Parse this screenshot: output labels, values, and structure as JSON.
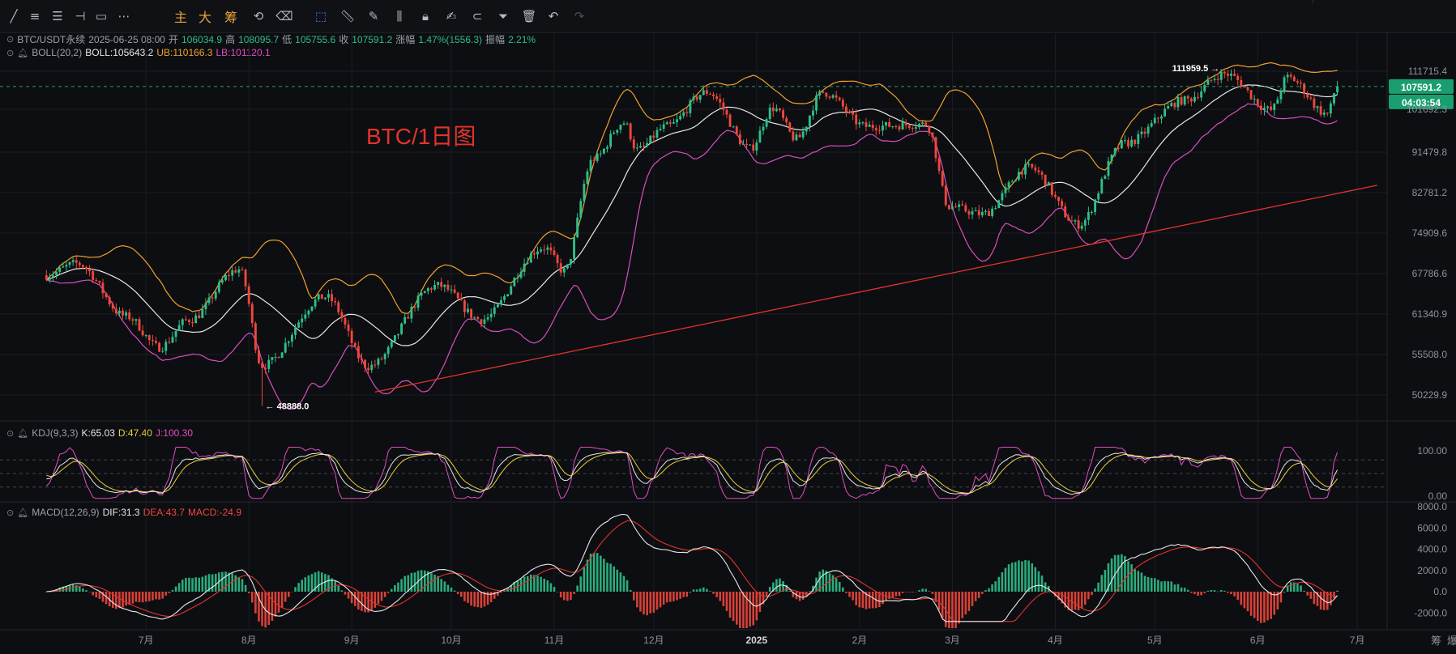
{
  "toolbar": {
    "cn_main": "主",
    "cn_big": "大",
    "cn_chip": "筹"
  },
  "header": {
    "symbol": "BTC/USDT永续",
    "datetime": "2025-06-25 08:00",
    "open_label": "开",
    "open": "106034.9",
    "high_label": "高",
    "high": "108095.7",
    "low_label": "低",
    "low": "105755.6",
    "close_label": "收",
    "close": "107591.2",
    "change_label": "涨幅",
    "change": "1.47%(1556.3)",
    "amp_label": "振幅",
    "amp": "2.21%"
  },
  "boll_legend": {
    "name": "BOLL(20,2)",
    "mid": "BOLL:105643.2",
    "ub": "UB:110166.3",
    "lb": "LB:101120.1"
  },
  "kdj_legend": {
    "name": "KDJ(9,3,3)",
    "k": "K:65.03",
    "d": "D:47.40",
    "j": "J:100.30"
  },
  "macd_legend": {
    "name": "MACD(12,26,9)",
    "dif": "DIF:31.3",
    "dea": "DEA:43.7",
    "macd": "MACD:-24.9"
  },
  "colors": {
    "up": "#2fbf8a",
    "down": "#f0473d",
    "boll_mid": "#e8e8e8",
    "boll_ub": "#f0a12e",
    "boll_lb": "#d94fc0",
    "trend": "#e2342c",
    "k": "#e6e6e6",
    "d": "#e9d03b",
    "j": "#e24cc4"
  },
  "chart_data": [
    {
      "type": "candlestick",
      "title": "BTC/1日图",
      "x_labels": [
        "7月",
        "8月",
        "9月",
        "10月",
        "11月",
        "12月",
        "2025",
        "2月",
        "3月",
        "4月",
        "5月",
        "6月",
        "7月"
      ],
      "y_ticks": [
        "111715.4",
        "101692.3",
        "91479.8",
        "82781.2",
        "74909.6",
        "67786.6",
        "61340.9",
        "55508.0",
        "50229.9"
      ],
      "current_price": "107591.2",
      "countdown": "04:03:54",
      "annotations": {
        "high": "111959.5",
        "low": "48888.0"
      },
      "series_names": [
        "BOLL",
        "UB",
        "LB"
      ],
      "anchors": [
        {
          "date": "2024-06-01",
          "price": 67500
        },
        {
          "date": "2024-06-10",
          "price": 69500
        },
        {
          "date": "2024-06-25",
          "price": 61000
        },
        {
          "date": "2024-07-05",
          "price": 56500
        },
        {
          "date": "2024-07-14",
          "price": 60500
        },
        {
          "date": "2024-07-29",
          "price": 68500
        },
        {
          "date": "2024-08-05",
          "price": 54000
        },
        {
          "date": "2024-08-24",
          "price": 64000
        },
        {
          "date": "2024-09-06",
          "price": 53900
        },
        {
          "date": "2024-09-27",
          "price": 65800
        },
        {
          "date": "2024-10-10",
          "price": 60500
        },
        {
          "date": "2024-10-29",
          "price": 72300
        },
        {
          "date": "2024-11-04",
          "price": 68200
        },
        {
          "date": "2024-11-13",
          "price": 90000
        },
        {
          "date": "2024-11-22",
          "price": 98400
        },
        {
          "date": "2024-11-26",
          "price": 92000
        },
        {
          "date": "2024-12-05",
          "price": 97500
        },
        {
          "date": "2024-12-17",
          "price": 106100
        },
        {
          "date": "2024-12-30",
          "price": 92300
        },
        {
          "date": "2025-01-06",
          "price": 102000
        },
        {
          "date": "2025-01-13",
          "price": 94500
        },
        {
          "date": "2025-01-21",
          "price": 106000
        },
        {
          "date": "2025-02-03",
          "price": 97500
        },
        {
          "date": "2025-02-21",
          "price": 98000
        },
        {
          "date": "2025-02-28",
          "price": 80000
        },
        {
          "date": "2025-03-10",
          "price": 78500
        },
        {
          "date": "2025-03-24",
          "price": 88000
        },
        {
          "date": "2025-04-08",
          "price": 76500
        },
        {
          "date": "2025-04-22",
          "price": 93500
        },
        {
          "date": "2025-05-10",
          "price": 104000
        },
        {
          "date": "2025-05-22",
          "price": 111000
        },
        {
          "date": "2025-06-05",
          "price": 101500
        },
        {
          "date": "2025-06-10",
          "price": 110000
        },
        {
          "date": "2025-06-22",
          "price": 100500
        },
        {
          "date": "2025-06-25",
          "price": 107591
        }
      ],
      "trendline": [
        {
          "date": "2024-09-08",
          "price": 50600
        },
        {
          "date": "2025-07-07",
          "price": 84300
        }
      ]
    },
    {
      "type": "line",
      "title": "KDJ(9,3,3)",
      "series": [
        {
          "name": "K"
        },
        {
          "name": "D"
        },
        {
          "name": "J"
        }
      ],
      "y_ticks": [
        "100.00",
        "0.00"
      ],
      "levels": [
        80,
        50,
        20
      ]
    },
    {
      "type": "bar",
      "title": "MACD(12,26,9)",
      "series": [
        {
          "name": "DIF"
        },
        {
          "name": "DEA"
        },
        {
          "name": "MACD"
        }
      ],
      "y_ticks": [
        "8000.0",
        "6000.0",
        "4000.0",
        "2000.0",
        "0.0",
        "-2000.0"
      ]
    }
  ],
  "footer": {
    "chips": "筹",
    "burst": "爆"
  }
}
